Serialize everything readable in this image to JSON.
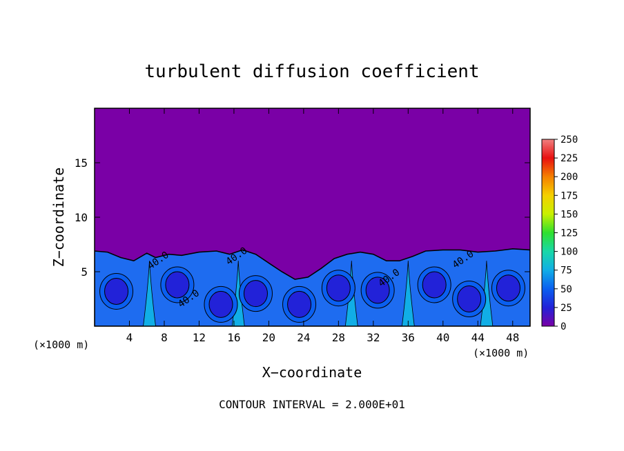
{
  "chart_data": {
    "type": "heatmap",
    "title": "turbulent diffusion coefficient",
    "xlabel": "X−coordinate",
    "ylabel": "Z−coordinate",
    "x_unit_left": "(×1000 m)",
    "x_unit_right": "(×1000 m)",
    "footer": "CONTOUR INTERVAL = 2.000E+01",
    "xlim": [
      0,
      50
    ],
    "ylim": [
      0,
      20
    ],
    "x_ticks": [
      4,
      8,
      12,
      16,
      20,
      24,
      28,
      32,
      36,
      40,
      44,
      48
    ],
    "y_ticks": [
      5,
      10,
      15
    ],
    "background_color": "#7a00a6",
    "boundary_layer_top": [
      [
        0,
        6.9
      ],
      [
        1.5,
        6.8
      ],
      [
        3,
        6.3
      ],
      [
        4.5,
        6.0
      ],
      [
        6,
        6.7
      ],
      [
        7,
        6.3
      ],
      [
        8.5,
        6.6
      ],
      [
        10,
        6.5
      ],
      [
        12,
        6.8
      ],
      [
        14,
        6.9
      ],
      [
        15.5,
        6.6
      ],
      [
        17,
        7.0
      ],
      [
        18.5,
        6.6
      ],
      [
        20,
        5.8
      ],
      [
        21.5,
        5.0
      ],
      [
        23,
        4.3
      ],
      [
        24.5,
        4.5
      ],
      [
        26,
        5.3
      ],
      [
        27.5,
        6.2
      ],
      [
        29,
        6.6
      ],
      [
        30.5,
        6.8
      ],
      [
        32,
        6.6
      ],
      [
        33.5,
        6.0
      ],
      [
        35,
        6.0
      ],
      [
        36.5,
        6.4
      ],
      [
        38,
        6.9
      ],
      [
        40,
        7.0
      ],
      [
        42,
        7.0
      ],
      [
        44,
        6.8
      ],
      [
        46,
        6.9
      ],
      [
        48,
        7.1
      ],
      [
        50,
        7.0
      ]
    ],
    "eddies": [
      {
        "x": 2.5,
        "z": 3.2,
        "value": 30
      },
      {
        "x": 9.5,
        "z": 3.8,
        "value": 35
      },
      {
        "x": 14.5,
        "z": 2.0,
        "value": 30
      },
      {
        "x": 18.5,
        "z": 3.0,
        "value": 30
      },
      {
        "x": 23.5,
        "z": 2.0,
        "value": 28
      },
      {
        "x": 28.0,
        "z": 3.5,
        "value": 30
      },
      {
        "x": 32.5,
        "z": 3.3,
        "value": 30
      },
      {
        "x": 39.0,
        "z": 3.8,
        "value": 32
      },
      {
        "x": 43.0,
        "z": 2.5,
        "value": 30
      },
      {
        "x": 47.5,
        "z": 3.5,
        "value": 30
      }
    ],
    "plumes": [
      {
        "x": 6.3,
        "value": 75
      },
      {
        "x": 16.5,
        "value": 70
      },
      {
        "x": 29.5,
        "value": 75
      },
      {
        "x": 36.0,
        "value": 85
      },
      {
        "x": 45.0,
        "value": 70
      }
    ],
    "contour_labels": [
      {
        "text": "40.0",
        "x": 7.5,
        "z": 5.8
      },
      {
        "text": "40.0",
        "x": 11.0,
        "z": 2.3
      },
      {
        "text": "40.0",
        "x": 16.5,
        "z": 6.2
      },
      {
        "text": "40.0",
        "x": 34.0,
        "z": 4.2
      },
      {
        "text": "40.0",
        "x": 42.5,
        "z": 5.9
      }
    ],
    "colorbar": {
      "ticks": [
        0,
        25,
        50,
        75,
        100,
        125,
        150,
        175,
        200,
        225,
        250
      ],
      "range": [
        0,
        250
      ],
      "colors": [
        "#7a00a6",
        "#2222d8",
        "#0a5ff0",
        "#11aee6",
        "#18d8a8",
        "#2fe02f",
        "#c8f000",
        "#f5d000",
        "#f58000",
        "#e81010",
        "#f08080"
      ]
    }
  }
}
